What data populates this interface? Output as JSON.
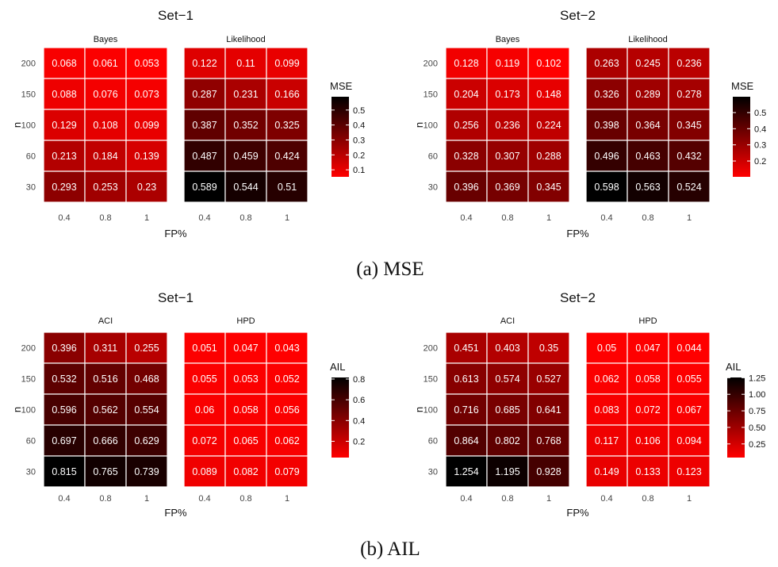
{
  "captions": [
    "(a) MSE",
    "(b) AIL"
  ],
  "colors": {
    "low": "#ff0000",
    "high": "#000000"
  },
  "chart_data": [
    {
      "type": "heatmap",
      "title": "Set−1",
      "xlabel": "FP%",
      "ylabel": "n",
      "x_ticks": [
        "0.4",
        "0.8",
        "1"
      ],
      "y_ticks": [
        "200",
        "150",
        "100",
        "60",
        "30"
      ],
      "legend": {
        "title": "MSE",
        "ticks": [
          "0.5",
          "0.4",
          "0.3",
          "0.2",
          "0.1"
        ],
        "tick_values": [
          0.5,
          0.4,
          0.3,
          0.2,
          0.1
        ],
        "range": [
          0.053,
          0.589
        ]
      },
      "panels": [
        {
          "facet": "Bayes",
          "values": [
            [
              "0.068",
              "0.061",
              "0.053"
            ],
            [
              "0.088",
              "0.076",
              "0.073"
            ],
            [
              "0.129",
              "0.108",
              "0.099"
            ],
            [
              "0.213",
              "0.184",
              "0.139"
            ],
            [
              "0.293",
              "0.253",
              "0.23"
            ]
          ]
        },
        {
          "facet": "Likelihood",
          "values": [
            [
              "0.122",
              "0.11",
              "0.099"
            ],
            [
              "0.287",
              "0.231",
              "0.166"
            ],
            [
              "0.387",
              "0.352",
              "0.325"
            ],
            [
              "0.487",
              "0.459",
              "0.424"
            ],
            [
              "0.589",
              "0.544",
              "0.51"
            ]
          ]
        }
      ]
    },
    {
      "type": "heatmap",
      "title": "Set−2",
      "xlabel": "FP%",
      "ylabel": "n",
      "x_ticks": [
        "0.4",
        "0.8",
        "1"
      ],
      "y_ticks": [
        "200",
        "150",
        "100",
        "60",
        "30"
      ],
      "legend": {
        "title": "MSE",
        "ticks": [
          "0.5",
          "0.4",
          "0.3",
          "0.2"
        ],
        "tick_values": [
          0.5,
          0.4,
          0.3,
          0.2
        ],
        "range": [
          0.102,
          0.598
        ]
      },
      "panels": [
        {
          "facet": "Bayes",
          "values": [
            [
              "0.128",
              "0.119",
              "0.102"
            ],
            [
              "0.204",
              "0.173",
              "0.148"
            ],
            [
              "0.256",
              "0.236",
              "0.224"
            ],
            [
              "0.328",
              "0.307",
              "0.288"
            ],
            [
              "0.396",
              "0.369",
              "0.345"
            ]
          ]
        },
        {
          "facet": "Likelihood",
          "values": [
            [
              "0.263",
              "0.245",
              "0.236"
            ],
            [
              "0.326",
              "0.289",
              "0.278"
            ],
            [
              "0.398",
              "0.364",
              "0.345"
            ],
            [
              "0.496",
              "0.463",
              "0.432"
            ],
            [
              "0.598",
              "0.563",
              "0.524"
            ]
          ]
        }
      ]
    },
    {
      "type": "heatmap",
      "title": "Set−1",
      "xlabel": "FP%",
      "ylabel": "n",
      "x_ticks": [
        "0.4",
        "0.8",
        "1"
      ],
      "y_ticks": [
        "200",
        "150",
        "100",
        "60",
        "30"
      ],
      "legend": {
        "title": "AIL",
        "ticks": [
          "0.8",
          "0.6",
          "0.4",
          "0.2"
        ],
        "tick_values": [
          0.8,
          0.6,
          0.4,
          0.2
        ],
        "range": [
          0.043,
          0.815
        ]
      },
      "panels": [
        {
          "facet": "ACI",
          "values": [
            [
              "0.396",
              "0.311",
              "0.255"
            ],
            [
              "0.532",
              "0.516",
              "0.468"
            ],
            [
              "0.596",
              "0.562",
              "0.554"
            ],
            [
              "0.697",
              "0.666",
              "0.629"
            ],
            [
              "0.815",
              "0.765",
              "0.739"
            ]
          ]
        },
        {
          "facet": "HPD",
          "values": [
            [
              "0.051",
              "0.047",
              "0.043"
            ],
            [
              "0.055",
              "0.053",
              "0.052"
            ],
            [
              "0.06",
              "0.058",
              "0.056"
            ],
            [
              "0.072",
              "0.065",
              "0.062"
            ],
            [
              "0.089",
              "0.082",
              "0.079"
            ]
          ]
        }
      ]
    },
    {
      "type": "heatmap",
      "title": "Set−2",
      "xlabel": "FP%",
      "ylabel": "n",
      "x_ticks": [
        "0.4",
        "0.8",
        "1"
      ],
      "y_ticks": [
        "200",
        "150",
        "100",
        "60",
        "30"
      ],
      "legend": {
        "title": "AIL",
        "ticks": [
          "1.25",
          "1.00",
          "0.75",
          "0.50",
          "0.25"
        ],
        "tick_values": [
          1.25,
          1.0,
          0.75,
          0.5,
          0.25
        ],
        "range": [
          0.044,
          1.254
        ]
      },
      "panels": [
        {
          "facet": "ACI",
          "values": [
            [
              "0.451",
              "0.403",
              "0.35"
            ],
            [
              "0.613",
              "0.574",
              "0.527"
            ],
            [
              "0.716",
              "0.685",
              "0.641"
            ],
            [
              "0.864",
              "0.802",
              "0.768"
            ],
            [
              "1.254",
              "1.195",
              "0.928"
            ]
          ]
        },
        {
          "facet": "HPD",
          "values": [
            [
              "0.05",
              "0.047",
              "0.044"
            ],
            [
              "0.062",
              "0.058",
              "0.055"
            ],
            [
              "0.083",
              "0.072",
              "0.067"
            ],
            [
              "0.117",
              "0.106",
              "0.094"
            ],
            [
              "0.149",
              "0.133",
              "0.123"
            ]
          ]
        }
      ]
    }
  ]
}
